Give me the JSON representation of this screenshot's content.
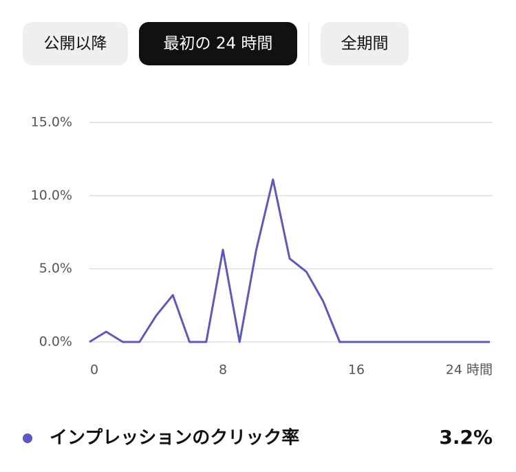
{
  "tabs": [
    "公開以降",
    "最初の 24 時間",
    "全期間"
  ],
  "selected_tab": 1,
  "chart_data": {
    "type": "line",
    "x": [
      0,
      1,
      2,
      3,
      4,
      5,
      6,
      7,
      8,
      9,
      10,
      11,
      12,
      13,
      14,
      15,
      16,
      17,
      18,
      19,
      20,
      21,
      22,
      23,
      24
    ],
    "series": [
      {
        "name": "インプレッションのクリック率",
        "color": "#5b57c4",
        "values": [
          0,
          0.7,
          0,
          0,
          1.8,
          3.2,
          0,
          0,
          6.3,
          0,
          6.3,
          11.1,
          5.7,
          4.8,
          2.8,
          0,
          0,
          0,
          0,
          0,
          0,
          0,
          0,
          0,
          0
        ],
        "summary": {
          "value": 3.2,
          "label": "3.2%"
        }
      }
    ],
    "xlim": [
      0,
      24
    ],
    "xticks": [
      0,
      8,
      16,
      {
        "value": 24,
        "label": "24 時間"
      }
    ],
    "ylim": [
      0,
      15
    ],
    "yticks": [
      {
        "value": 0,
        "label": "0.0%"
      },
      {
        "value": 5,
        "label": "5.0%"
      },
      {
        "value": 10,
        "label": "10.0%"
      },
      {
        "value": 15,
        "label": "15.0%"
      }
    ],
    "grid": true
  }
}
